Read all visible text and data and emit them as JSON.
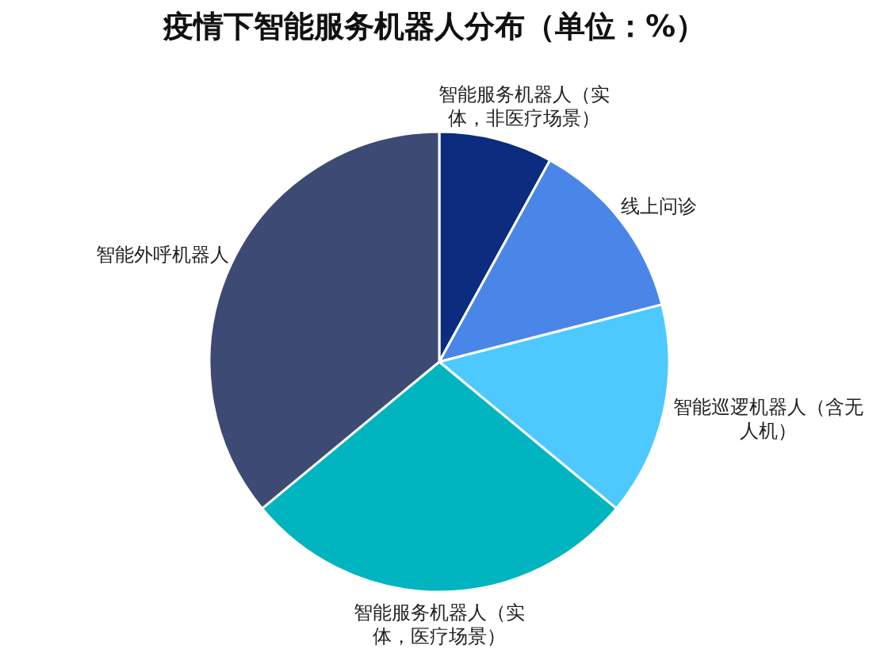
{
  "chart_data": {
    "type": "pie",
    "title": "疫情下智能服务机器人分布（单位：%）",
    "categories": [
      "智能服务机器人（实体，非医疗场景）",
      "线上问诊",
      "智能巡逻机器人（含无人机）",
      "智能服务机器人（实体，医疗场景）",
      "智能外呼机器人"
    ],
    "values": [
      8,
      13,
      15,
      28,
      36
    ],
    "colors": [
      "#0b2c7f",
      "#4a86e8",
      "#4dc9ff",
      "#00b4c0",
      "#3d4a73"
    ]
  }
}
